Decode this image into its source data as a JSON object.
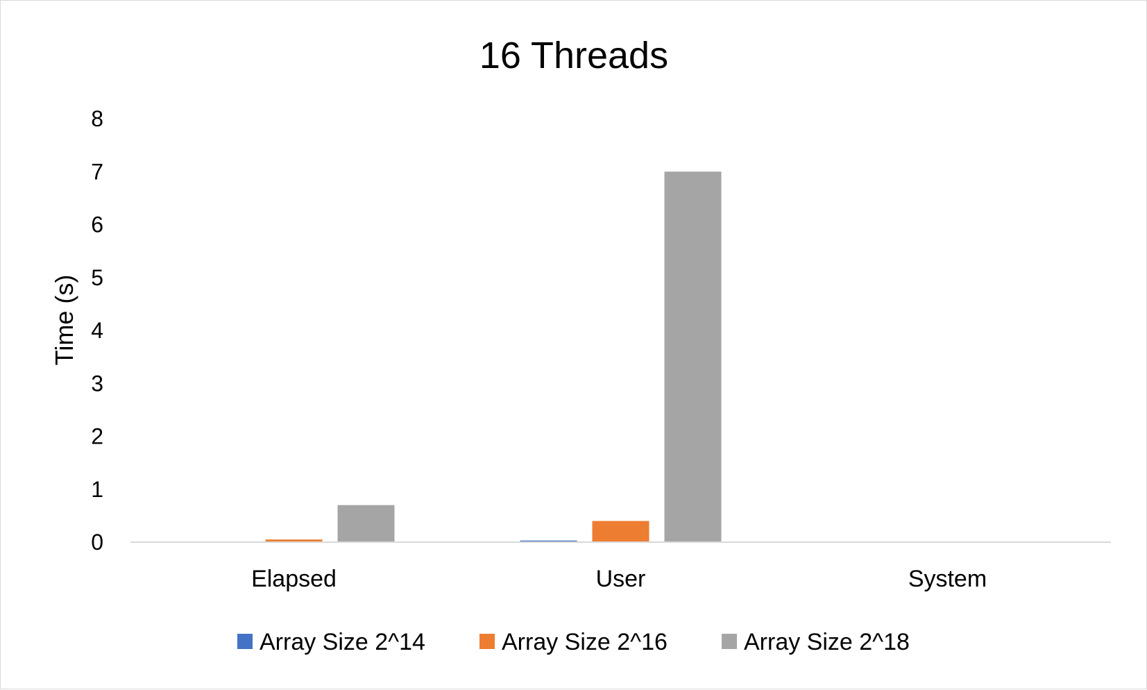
{
  "chart_data": {
    "type": "bar",
    "title": "16 Threads",
    "xlabel": "",
    "ylabel": "Time (s)",
    "ylim": [
      0,
      8
    ],
    "yticks": [
      0,
      1,
      2,
      3,
      4,
      5,
      6,
      7,
      8
    ],
    "grid": false,
    "legend_position": "bottom",
    "categories": [
      "Elapsed",
      "User",
      "System"
    ],
    "series": [
      {
        "name": "Array Size 2^14",
        "color": "#4472c4",
        "values": [
          0.003,
          0.03,
          0.0
        ]
      },
      {
        "name": "Array Size 2^16",
        "color": "#ed7d31",
        "values": [
          0.05,
          0.4,
          0.0
        ]
      },
      {
        "name": "Array Size 2^18",
        "color": "#a5a5a5",
        "values": [
          0.7,
          7.0,
          0.0
        ]
      }
    ]
  }
}
